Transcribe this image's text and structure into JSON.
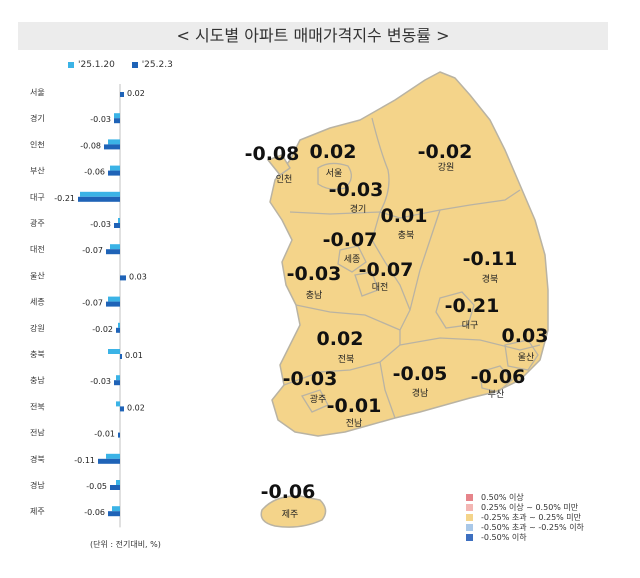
{
  "title": "< 시도별 아파트 매매가격지수 변동률 >",
  "colors": {
    "prev": "#3bb3e6",
    "curr": "#1f63b7",
    "map_fill": "#f4d48a",
    "map_stroke": "#b9b3a3"
  },
  "chart_data": {
    "type": "bar",
    "orientation": "horizontal",
    "categories": [
      "서울",
      "경기",
      "인천",
      "부산",
      "대구",
      "광주",
      "대전",
      "울산",
      "세종",
      "강원",
      "충북",
      "충남",
      "전북",
      "전남",
      "경북",
      "경남",
      "제주"
    ],
    "series": [
      {
        "name": "'25.1.20",
        "values": [
          0.0,
          -0.03,
          -0.06,
          -0.05,
          -0.2,
          -0.01,
          -0.05,
          0.0,
          -0.06,
          -0.01,
          -0.06,
          -0.02,
          -0.02,
          0.0,
          -0.07,
          -0.02,
          -0.04
        ]
      },
      {
        "name": "'25.2.3",
        "values": [
          0.02,
          -0.03,
          -0.08,
          -0.06,
          -0.21,
          -0.03,
          -0.07,
          0.03,
          -0.07,
          -0.02,
          0.01,
          -0.03,
          0.02,
          -0.01,
          -0.11,
          -0.05,
          -0.06
        ]
      }
    ],
    "labels": [
      "0.02",
      "-0.03",
      "-0.08",
      "-0.06",
      "-0.21",
      "-0.03",
      "-0.07",
      "0.03",
      "-0.07",
      "-0.02",
      "0.01",
      "-0.03",
      "0.02",
      "-0.01",
      "-0.11",
      "-0.05",
      "-0.06"
    ],
    "unit_note": "(단위 : 전기대비, %)"
  },
  "map": {
    "regions": [
      {
        "name": "인천",
        "value": "-0.08"
      },
      {
        "name": "서울",
        "value": "0.02"
      },
      {
        "name": "경기",
        "value": "-0.03"
      },
      {
        "name": "강원",
        "value": "-0.02"
      },
      {
        "name": "충북",
        "value": "0.01"
      },
      {
        "name": "세종",
        "value": "-0.07"
      },
      {
        "name": "충남",
        "value": "-0.03"
      },
      {
        "name": "대전",
        "value": "-0.07"
      },
      {
        "name": "경북",
        "value": "-0.11"
      },
      {
        "name": "대구",
        "value": "-0.21"
      },
      {
        "name": "울산",
        "value": "0.03"
      },
      {
        "name": "전북",
        "value": "0.02"
      },
      {
        "name": "광주",
        "value": "-0.03"
      },
      {
        "name": "전남",
        "value": "-0.01"
      },
      {
        "name": "경남",
        "value": "-0.05"
      },
      {
        "name": "부산",
        "value": "-0.06"
      },
      {
        "name": "제주",
        "value": "-0.06"
      }
    ],
    "legend": [
      {
        "label": "0.50% 이상",
        "color": "#e6848a"
      },
      {
        "label": "0.25% 이상 ~ 0.50% 미만",
        "color": "#f3b6b3"
      },
      {
        "label": "-0.25% 초과 ~ 0.25% 미만",
        "color": "#f4d48a"
      },
      {
        "label": "-0.50% 초과 ~ -0.25% 이하",
        "color": "#a9c8e8"
      },
      {
        "label": "-0.50% 이하",
        "color": "#3d6fc0"
      }
    ]
  }
}
